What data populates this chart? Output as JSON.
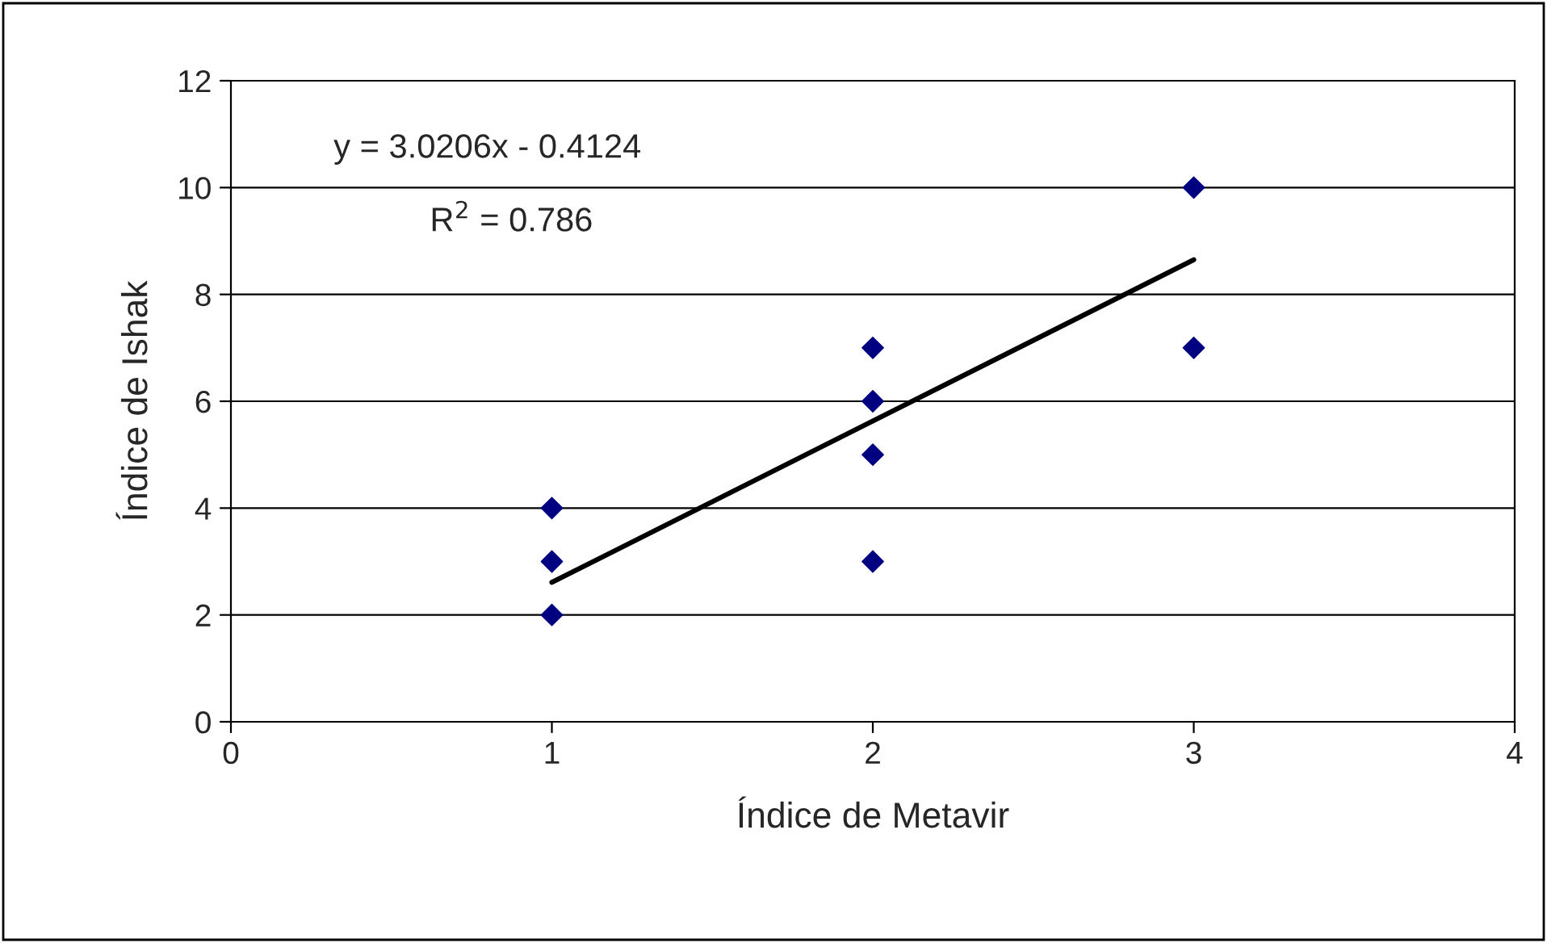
{
  "chart_data": {
    "type": "scatter",
    "xlabel": "Índice de Metavir",
    "ylabel": "Índice de Ishak",
    "annotations": [
      "y = 3.0206x - 0.4124",
      "R$^{2}$ = 0.786"
    ],
    "series": [
      {
        "color": "#000080",
        "marker": "diamond",
        "x": [
          1,
          1,
          1,
          2,
          2,
          2,
          2,
          3,
          3
        ],
        "values": [
          4,
          3,
          2,
          7,
          6,
          5,
          3,
          10,
          7
        ]
      },
      {
        "type": "line",
        "color": "#000000",
        "marker": "none",
        "line_style": "solid",
        "x": [
          1,
          3
        ],
        "values": [
          2.61,
          8.65
        ]
      }
    ],
    "xlim": [
      0,
      4
    ],
    "xticks": [
      0,
      1,
      2,
      3,
      4
    ],
    "ylim": [
      0,
      12
    ],
    "yticks": [
      0,
      2,
      4,
      6,
      8,
      10,
      12
    ],
    "grid": "y",
    "legend": false
  }
}
